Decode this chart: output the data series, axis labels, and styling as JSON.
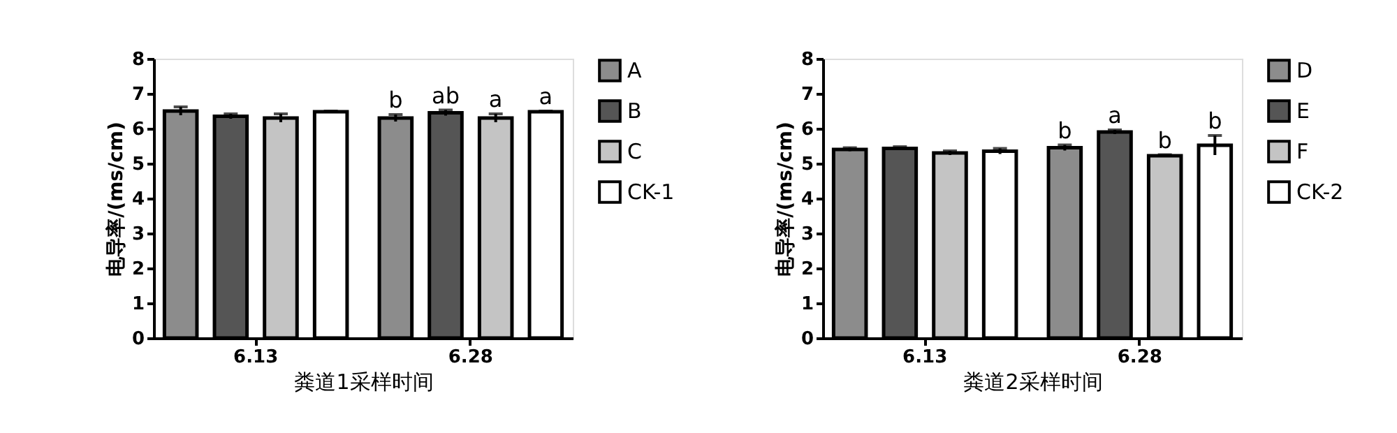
{
  "chart_data": [
    {
      "type": "bar",
      "xlabel": "粪道1采样时间",
      "ylabel": "电导率/(ms/cm)",
      "categories": [
        "6.13",
        "6.28"
      ],
      "ylim": [
        0,
        8
      ],
      "yticks": [
        0,
        1,
        2,
        3,
        4,
        5,
        6,
        7,
        8
      ],
      "grid": false,
      "legend": "right",
      "series": [
        {
          "name": "A",
          "color": "#8c8c8c",
          "values": [
            6.5,
            6.3
          ],
          "errors": [
            0.12,
            0.1
          ],
          "value_labels": [
            null,
            "b"
          ]
        },
        {
          "name": "B",
          "color": "#555555",
          "values": [
            6.35,
            6.45
          ],
          "errors": [
            0.07,
            0.08
          ],
          "value_labels": [
            null,
            "ab"
          ]
        },
        {
          "name": "C",
          "color": "#c4c4c4",
          "values": [
            6.3,
            6.3
          ],
          "errors": [
            0.12,
            0.12
          ],
          "value_labels": [
            null,
            "a"
          ]
        },
        {
          "name": "CK-1",
          "color": "#ffffff",
          "values": [
            6.48,
            6.48
          ],
          "errors": [
            0.02,
            0.02
          ],
          "value_labels": [
            null,
            "a"
          ]
        }
      ]
    },
    {
      "type": "bar",
      "xlabel": "粪道2采样时间",
      "ylabel": "电导率/(ms/cm)",
      "categories": [
        "6.13",
        "6.28"
      ],
      "ylim": [
        0,
        8
      ],
      "yticks": [
        0,
        1,
        2,
        3,
        4,
        5,
        6,
        7,
        8
      ],
      "grid": false,
      "legend": "right",
      "series": [
        {
          "name": "D",
          "color": "#8c8c8c",
          "values": [
            5.4,
            5.45
          ],
          "errors": [
            0.05,
            0.08
          ],
          "value_labels": [
            null,
            "b"
          ]
        },
        {
          "name": "E",
          "color": "#555555",
          "values": [
            5.43,
            5.9
          ],
          "errors": [
            0.05,
            0.06
          ],
          "value_labels": [
            null,
            "a"
          ]
        },
        {
          "name": "F",
          "color": "#c4c4c4",
          "values": [
            5.3,
            5.22
          ],
          "errors": [
            0.06,
            0.03
          ],
          "value_labels": [
            null,
            "b"
          ]
        },
        {
          "name": "CK-2",
          "color": "#ffffff",
          "values": [
            5.35,
            5.52
          ],
          "errors": [
            0.08,
            0.28
          ],
          "value_labels": [
            null,
            "b"
          ]
        }
      ]
    }
  ]
}
